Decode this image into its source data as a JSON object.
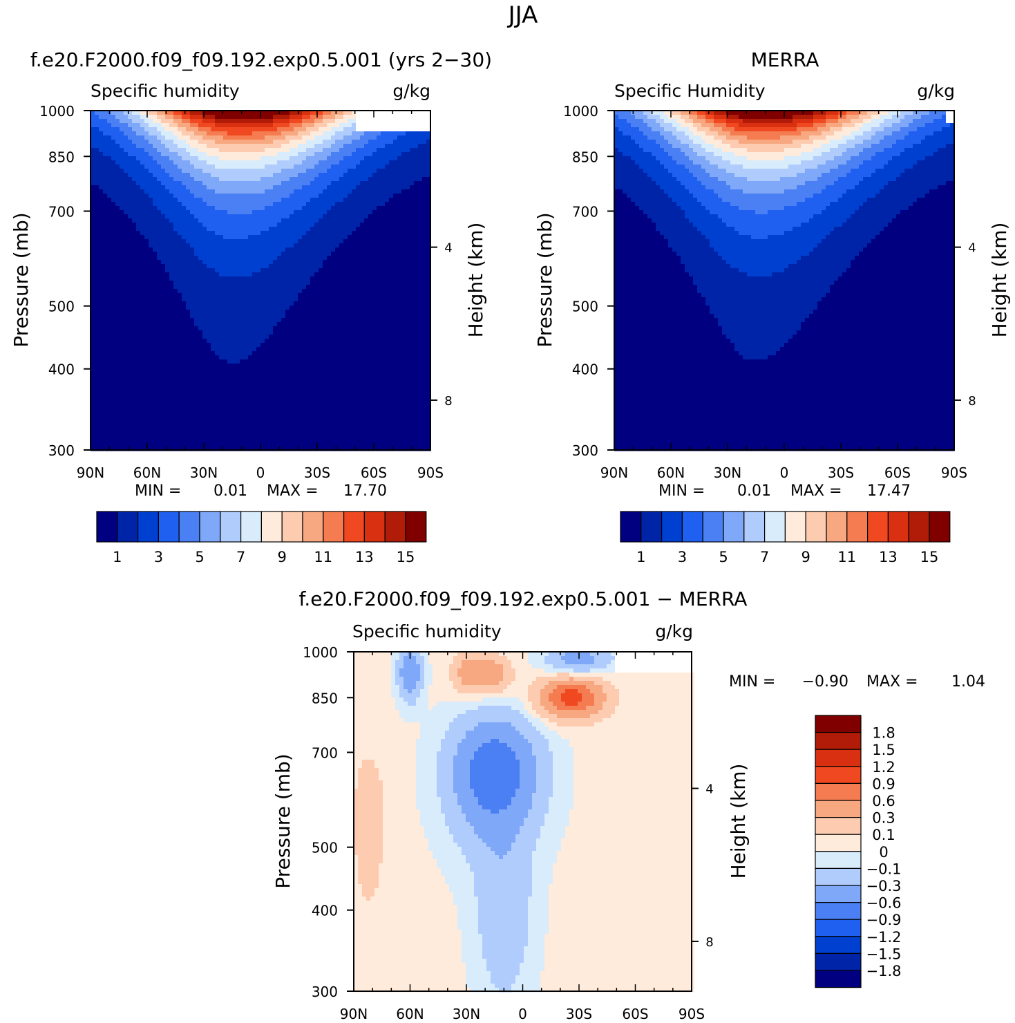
{
  "page_title": "JJA",
  "colors": {
    "seq": [
      "#000080",
      "#0024a8",
      "#0040d0",
      "#2060f0",
      "#4a80f4",
      "#80a8f8",
      "#b0ccfc",
      "#d8ecfc",
      "#ffebdc",
      "#fccbb0",
      "#f8a880",
      "#f47c50",
      "#f04820",
      "#d83010",
      "#b01c08",
      "#800000"
    ],
    "diff_pos": [
      "#ffebdc",
      "#fccbb0",
      "#f8a880",
      "#f47c50",
      "#f04820",
      "#d83010",
      "#b01c08",
      "#800000"
    ],
    "diff_neg": [
      "#d8ecfc",
      "#b0ccfc",
      "#80a8f8",
      "#4a80f4",
      "#2060f0",
      "#0040d0",
      "#0024a8",
      "#000080"
    ]
  },
  "chart_data": [
    {
      "type": "contour",
      "id": "model",
      "header": "f.e20.F2000.f09_f09.192.exp0.5.001 (yrs 2−30)",
      "title": "Specific humidity",
      "units": "g/kg",
      "ylabel": "Pressure (mb)",
      "y2label": "Height (km)",
      "x_ticks": [
        "90N",
        "60N",
        "30N",
        "0",
        "30S",
        "60S",
        "90S"
      ],
      "y_ticks": [
        "300",
        "400",
        "500",
        "700",
        "850",
        "1000"
      ],
      "y2_ticks": [
        "8",
        "4"
      ],
      "xlim": [
        90,
        -90
      ],
      "ylim": [
        1000,
        300
      ],
      "field": {
        "peak_lat": 10,
        "peak_value": 17.7,
        "width_top": 28,
        "width_bottom": 58,
        "east_mask_lat": -50,
        "east_mask_p": 925
      },
      "stats": {
        "min_label": "MIN =",
        "min": "0.01",
        "max_label": "MAX =",
        "max": "17.70"
      },
      "colorbar": {
        "levels": [
          1,
          2,
          3,
          4,
          5,
          6,
          7,
          8,
          9,
          10,
          11,
          12,
          13,
          14,
          15
        ],
        "labels": [
          "1",
          "3",
          "5",
          "7",
          "9",
          "11",
          "13",
          "15"
        ]
      }
    },
    {
      "type": "contour",
      "id": "obs",
      "header": "MERRA",
      "title": "Specific Humidity",
      "units": "g/kg",
      "ylabel": "Pressure (mb)",
      "y2label": "Height (km)",
      "x_ticks": [
        "90N",
        "60N",
        "30N",
        "0",
        "30S",
        "60S",
        "90S"
      ],
      "y_ticks": [
        "300",
        "400",
        "500",
        "700",
        "850",
        "1000"
      ],
      "y2_ticks": [
        "8",
        "4"
      ],
      "xlim": [
        90,
        -90
      ],
      "ylim": [
        1000,
        300
      ],
      "field": {
        "peak_lat": 10,
        "peak_value": 17.47,
        "width_top": 30,
        "width_bottom": 60,
        "east_mask_lat": -85,
        "east_mask_p": 950
      },
      "stats": {
        "min_label": "MIN =",
        "min": "0.01",
        "max_label": "MAX =",
        "max": "17.47"
      },
      "colorbar": {
        "levels": [
          1,
          2,
          3,
          4,
          5,
          6,
          7,
          8,
          9,
          10,
          11,
          12,
          13,
          14,
          15
        ],
        "labels": [
          "1",
          "3",
          "5",
          "7",
          "9",
          "11",
          "13",
          "15"
        ]
      }
    },
    {
      "type": "contour",
      "id": "diff",
      "header": "f.e20.F2000.f09_f09.192.exp0.5.001 − MERRA",
      "title": "Specific humidity",
      "units": "g/kg",
      "ylabel": "Pressure (mb)",
      "y2label": "Height (km)",
      "x_ticks": [
        "90N",
        "60N",
        "30N",
        "0",
        "30S",
        "60S",
        "90S"
      ],
      "y_ticks": [
        "300",
        "400",
        "500",
        "700",
        "850",
        "1000"
      ],
      "y2_ticks": [
        "8",
        "4"
      ],
      "xlim": [
        90,
        -90
      ],
      "ylim": [
        1000,
        300
      ],
      "blobs": [
        {
          "lat": 15,
          "p": 650,
          "rlat": 22,
          "rp": 130,
          "amp": -0.9
        },
        {
          "lat": 10,
          "p": 400,
          "rlat": 14,
          "rp": 110,
          "amp": -0.28
        },
        {
          "lat": -26,
          "p": 850,
          "rlat": 16,
          "rp": 55,
          "amp": 1.04
        },
        {
          "lat": 60,
          "p": 930,
          "rlat": 6,
          "rp": 80,
          "amp": -0.6
        },
        {
          "lat": 18,
          "p": 925,
          "rlat": 10,
          "rp": 55,
          "amp": 0.55
        },
        {
          "lat": -30,
          "p": 975,
          "rlat": 16,
          "rp": 45,
          "amp": -0.45
        },
        {
          "lat": 82,
          "p": 550,
          "rlat": 10,
          "rp": 170,
          "amp": 0.15
        },
        {
          "lat": 30,
          "p": 930,
          "rlat": 7,
          "rp": 60,
          "amp": 0.35
        }
      ],
      "stats": {
        "min_label": "MIN =",
        "min": "−0.90",
        "max_label": "MAX =",
        "max": "1.04"
      },
      "colorbar": {
        "levels": [
          -1.8,
          -1.5,
          -1.2,
          -0.9,
          -0.6,
          -0.3,
          -0.1,
          0,
          0.1,
          0.3,
          0.6,
          0.9,
          1.2,
          1.5,
          1.8
        ],
        "labels": [
          "1.8",
          "1.5",
          "1.2",
          "0.9",
          "0.6",
          "0.3",
          "0.1",
          "0",
          "−0.1",
          "−0.3",
          "−0.6",
          "−0.9",
          "−1.2",
          "−1.5",
          "−1.8"
        ]
      }
    }
  ]
}
